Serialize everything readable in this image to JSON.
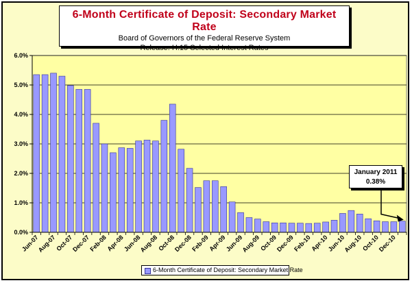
{
  "chart_data": {
    "type": "bar",
    "title": "6-Month Certificate of Deposit: Secondary Market Rate",
    "subtitle": [
      "Board of Governors of the Federal Reserve System",
      "Release:  H.15 Selected Interest Rates"
    ],
    "xlabel": "",
    "ylabel": "",
    "ylim": [
      0,
      6
    ],
    "yticks": [
      "0.0%",
      "1.0%",
      "2.0%",
      "3.0%",
      "4.0%",
      "5.0%",
      "6.0%"
    ],
    "grid": true,
    "legend_position": "bottom",
    "categories": [
      "Jun-07",
      "Jul-07",
      "Aug-07",
      "Sep-07",
      "Oct-07",
      "Nov-07",
      "Dec-07",
      "Jan-08",
      "Feb-08",
      "Mar-08",
      "Apr-08",
      "May-08",
      "Jun-08",
      "Jul-08",
      "Aug-08",
      "Sep-08",
      "Oct-08",
      "Nov-08",
      "Dec-08",
      "Jan-09",
      "Feb-09",
      "Mar-09",
      "Apr-09",
      "May-09",
      "Jun-09",
      "Jul-09",
      "Aug-09",
      "Sep-09",
      "Oct-09",
      "Nov-09",
      "Dec-09",
      "Jan-10",
      "Feb-10",
      "Mar-10",
      "Apr-10",
      "May-10",
      "Jun-10",
      "Jul-10",
      "Aug-10",
      "Sep-10",
      "Oct-10",
      "Nov-10",
      "Dec-10",
      "Jan-11"
    ],
    "tick_labels": [
      "Jun-07",
      "Aug-07",
      "Oct-07",
      "Dec-07",
      "Feb-08",
      "Apr-08",
      "Jun-08",
      "Aug-08",
      "Oct-08",
      "Dec-08",
      "Feb-09",
      "Apr-09",
      "Jun-09",
      "Aug-09",
      "Oct-09",
      "Dec-09",
      "Feb-10",
      "Apr-10",
      "Jun-10",
      "Aug-10",
      "Oct-10",
      "Dec-10"
    ],
    "series": [
      {
        "name": "6-Month Certificate of Deposit: Secondary Market Rate",
        "color": "#9999ff",
        "values": [
          5.35,
          5.35,
          5.4,
          5.3,
          4.98,
          4.85,
          4.85,
          3.7,
          3.0,
          2.7,
          2.87,
          2.85,
          3.1,
          3.13,
          3.1,
          3.8,
          4.35,
          2.82,
          2.17,
          1.52,
          1.75,
          1.75,
          1.55,
          1.03,
          0.67,
          0.5,
          0.45,
          0.36,
          0.32,
          0.32,
          0.31,
          0.31,
          0.3,
          0.31,
          0.35,
          0.41,
          0.64,
          0.74,
          0.62,
          0.46,
          0.39,
          0.36,
          0.36,
          0.38
        ]
      }
    ],
    "annotation": {
      "lines": [
        "January 2011",
        "0.38%"
      ],
      "target": "Jan-11"
    }
  }
}
